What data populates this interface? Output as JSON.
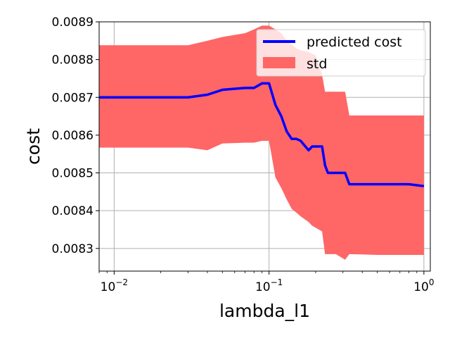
{
  "chart_data": {
    "type": "line",
    "xlabel": "lambda_l1",
    "ylabel": "cost",
    "x_scale": "log",
    "xlim": [
      0.008,
      1.1
    ],
    "ylim": [
      0.00824,
      0.0089
    ],
    "grid": true,
    "legend_position": "top-right",
    "x_ticks": [
      {
        "value": 0.01,
        "base": "10",
        "exp": "−2"
      },
      {
        "value": 0.1,
        "base": "10",
        "exp": "−1"
      },
      {
        "value": 1.0,
        "base": "10",
        "exp": "0"
      }
    ],
    "y_ticks": [
      {
        "value": 0.0083,
        "label": "0.0083"
      },
      {
        "value": 0.0084,
        "label": "0.0084"
      },
      {
        "value": 0.0085,
        "label": "0.0085"
      },
      {
        "value": 0.0086,
        "label": "0.0086"
      },
      {
        "value": 0.0087,
        "label": "0.0087"
      },
      {
        "value": 0.0088,
        "label": "0.0088"
      },
      {
        "value": 0.0089,
        "label": "0.0089"
      }
    ],
    "series": [
      {
        "name": "predicted cost",
        "color": "#0000ff",
        "x": [
          0.008,
          0.03,
          0.04,
          0.05,
          0.07,
          0.08,
          0.09,
          0.1,
          0.11,
          0.12,
          0.13,
          0.14,
          0.15,
          0.16,
          0.18,
          0.19,
          0.2,
          0.22,
          0.23,
          0.24,
          0.27,
          0.31,
          0.33,
          0.5,
          0.8,
          1.0
        ],
        "y": [
          0.0087,
          0.0087,
          0.008707,
          0.00872,
          0.008725,
          0.008725,
          0.008737,
          0.008737,
          0.00868,
          0.00865,
          0.00861,
          0.00859,
          0.00859,
          0.008585,
          0.00856,
          0.00857,
          0.00857,
          0.00857,
          0.00852,
          0.0085,
          0.0085,
          0.0085,
          0.00847,
          0.00847,
          0.00847,
          0.008465
        ]
      },
      {
        "name": "std",
        "color": "#ff6666",
        "x": [
          0.008,
          0.03,
          0.04,
          0.05,
          0.07,
          0.08,
          0.09,
          0.1,
          0.11,
          0.12,
          0.13,
          0.14,
          0.15,
          0.16,
          0.18,
          0.19,
          0.2,
          0.22,
          0.23,
          0.24,
          0.27,
          0.31,
          0.33,
          0.5,
          0.8,
          1.0
        ],
        "upper": [
          0.008838,
          0.008838,
          0.00885,
          0.00886,
          0.00887,
          0.00888,
          0.00889,
          0.00889,
          0.00888,
          0.00887,
          0.00885,
          0.00884,
          0.00883,
          0.008825,
          0.00882,
          0.008815,
          0.008812,
          0.00876,
          0.008715,
          0.008715,
          0.008715,
          0.008715,
          0.008652,
          0.008652,
          0.008652,
          0.008652
        ],
        "lower": [
          0.008567,
          0.008567,
          0.00856,
          0.008578,
          0.00858,
          0.00858,
          0.008585,
          0.008585,
          0.008488,
          0.00846,
          0.00843,
          0.008405,
          0.008395,
          0.008385,
          0.00837,
          0.00836,
          0.008355,
          0.008345,
          0.008285,
          0.008285,
          0.008285,
          0.00827,
          0.008285,
          0.008283,
          0.008283,
          0.008283
        ]
      }
    ]
  }
}
